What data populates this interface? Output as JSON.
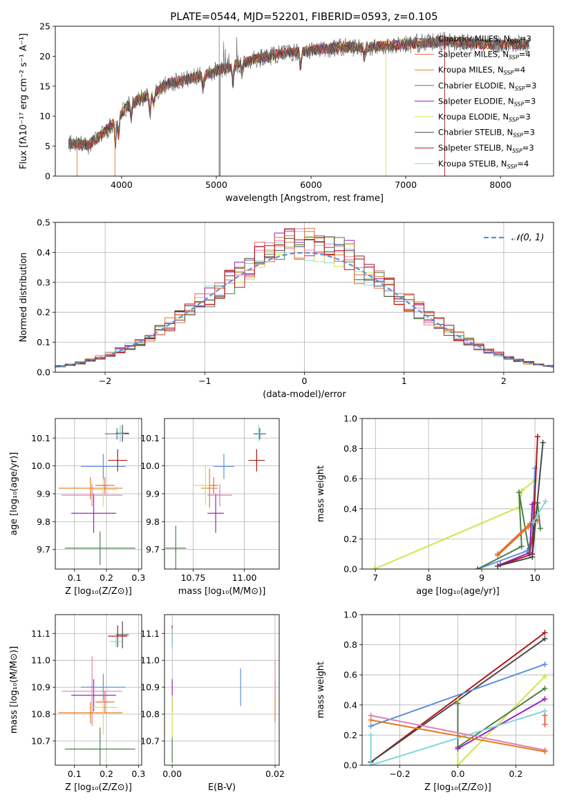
{
  "figure": {
    "title": "PLATE=0544, MJD=52201, FIBERID=0593, z=0.105"
  },
  "colors": {
    "c0": "#6a6a6a",
    "c1": "#e8664a",
    "c2": "#e07b1a",
    "c3": "#4a7d4a",
    "c4": "#9a1fba",
    "c5": "#d4e24a",
    "c6": "#474747",
    "c7": "#b01414",
    "c8": "#7fd4e0",
    "blue": "#5b8fe0",
    "pink": "#e07fb0",
    "grid": "#b0b0b0"
  },
  "chart_data": [
    {
      "type": "line",
      "id": "spectrum",
      "xlabel": "wavelength [Angstrom, rest frame]",
      "ylabel": "Flux [fλ10⁻¹⁷ erg cm⁻² s⁻¹ A⁻¹]",
      "xlim": [
        3300,
        8560
      ],
      "ylim": [
        0,
        25
      ],
      "xticks": [
        4000,
        5000,
        6000,
        7000,
        8000
      ],
      "yticks": [
        0,
        5,
        10,
        15,
        20,
        25
      ],
      "grid": false,
      "legend_position": "upper right",
      "legend": [
        {
          "name": "Chabrier MILES, N",
          "sub": "SSP",
          "tail": "=3",
          "color": "c0"
        },
        {
          "name": "Salpeter MILES, N",
          "sub": "SSP",
          "tail": "=4",
          "color": "c1"
        },
        {
          "name": "Kroupa MILES, N",
          "sub": "SSP",
          "tail": "=4",
          "color": "c2"
        },
        {
          "name": "Chabrier ELODIE, N",
          "sub": "SSP",
          "tail": "=3",
          "color": "c3"
        },
        {
          "name": "Salpeter ELODIE, N",
          "sub": "SSP",
          "tail": "=3",
          "color": "c4"
        },
        {
          "name": "Kroupa ELODIE, N",
          "sub": "SSP",
          "tail": "=3",
          "color": "c5"
        },
        {
          "name": "Chabrier STELIB, N",
          "sub": "SSP",
          "tail": "=3",
          "color": "c6"
        },
        {
          "name": "Salpeter STELIB, N",
          "sub": "SSP",
          "tail": "=3",
          "color": "c7"
        },
        {
          "name": "Kroupa STELIB, N",
          "sub": "SSP",
          "tail": "=4",
          "color": "c8"
        }
      ],
      "continuum": [
        [
          3450,
          5.5
        ],
        [
          3650,
          5.2
        ],
        [
          3800,
          7.0
        ],
        [
          3950,
          9.5
        ],
        [
          4050,
          11.5
        ],
        [
          4200,
          13.0
        ],
        [
          4300,
          13.5
        ],
        [
          4500,
          15.5
        ],
        [
          4800,
          16.5
        ],
        [
          5000,
          17.5
        ],
        [
          5200,
          18.5
        ],
        [
          5400,
          19.5
        ],
        [
          5700,
          20.5
        ],
        [
          6000,
          21.0
        ],
        [
          6300,
          21.5
        ],
        [
          6600,
          21.5
        ],
        [
          7000,
          22.0
        ],
        [
          7400,
          22.5
        ],
        [
          7800,
          22.0
        ],
        [
          8300,
          22.0
        ]
      ]
    },
    {
      "type": "histogram",
      "id": "residuals",
      "xlabel": "(data-model)/error",
      "ylabel": "Normed distribution",
      "xlim": [
        -2.5,
        2.5
      ],
      "ylim": [
        0,
        0.5
      ],
      "xticks": [
        -2,
        -1,
        0,
        1,
        2
      ],
      "yticks": [
        0.0,
        0.1,
        0.2,
        0.3,
        0.4,
        0.5
      ],
      "grid": true,
      "reference": {
        "name": "𝒩(0, 1)",
        "mean": 0,
        "sigma": 1,
        "color": "blue",
        "style": "dashed"
      },
      "legend_position": "upper right",
      "bin_width": 0.1
    },
    {
      "type": "scatter",
      "id": "age_vs_Z",
      "xlabel": "Z [log₁₀(Z/Z⊙)]",
      "ylabel": "age  [log₁₀(age/yr)]",
      "xlim": [
        0.04,
        0.31
      ],
      "ylim": [
        9.63,
        10.17
      ],
      "xticks": [
        0.1,
        0.2,
        0.3
      ],
      "yticks": [
        9.7,
        9.8,
        9.9,
        10.0,
        10.1
      ],
      "grid": true,
      "points": [
        {
          "x": 0.18,
          "y": 9.705,
          "xerr": 0.11,
          "yerr": 0.06,
          "color": "c3"
        },
        {
          "x": 0.16,
          "y": 9.83,
          "xerr": 0.07,
          "yerr": 0.07,
          "color": "c4"
        },
        {
          "x": 0.155,
          "y": 9.895,
          "xerr": 0.095,
          "yerr": 0.04,
          "color": "pink"
        },
        {
          "x": 0.15,
          "y": 9.92,
          "xerr": 0.1,
          "yerr": 0.04,
          "color": "c2"
        },
        {
          "x": 0.19,
          "y": 9.915,
          "xerr": 0.045,
          "yerr": 0.06,
          "color": "c5"
        },
        {
          "x": 0.195,
          "y": 9.93,
          "xerr": 0.03,
          "yerr": 0.03,
          "color": "c1"
        },
        {
          "x": 0.19,
          "y": 9.998,
          "xerr": 0.07,
          "yerr": 0.045,
          "color": "blue"
        },
        {
          "x": 0.235,
          "y": 10.02,
          "xerr": 0.03,
          "yerr": 0.04,
          "color": "c7"
        },
        {
          "x": 0.233,
          "y": 10.115,
          "xerr": 0.038,
          "yerr": 0.02,
          "color": "c0"
        },
        {
          "x": 0.25,
          "y": 10.117,
          "xerr": 0.02,
          "yerr": 0.03,
          "color": "c6"
        },
        {
          "x": 0.243,
          "y": 10.115,
          "xerr": 0.01,
          "yerr": 0.03,
          "color": "c8"
        }
      ]
    },
    {
      "type": "scatter",
      "id": "age_vs_mass",
      "xlabel": "mass [log₁₀(M/M⊙)]",
      "ylabel": "",
      "xlim": [
        10.61,
        11.17
      ],
      "ylim": [
        9.63,
        10.17
      ],
      "xticks": [
        10.75,
        11.0
      ],
      "xtick_labels": [
        "10.75",
        "11.00"
      ],
      "yticks": [
        9.7,
        9.8,
        9.9,
        10.0,
        10.1
      ],
      "grid": true,
      "points": [
        {
          "x": 10.665,
          "y": 9.705,
          "xerr": 0.05,
          "yerr": 0.08,
          "color": "c3"
        },
        {
          "x": 10.86,
          "y": 9.83,
          "xerr": 0.04,
          "yerr": 0.07,
          "color": "c4"
        },
        {
          "x": 10.88,
          "y": 9.895,
          "xerr": 0.06,
          "yerr": 0.04,
          "color": "pink"
        },
        {
          "x": 10.83,
          "y": 9.92,
          "xerr": 0.04,
          "yerr": 0.07,
          "color": "c2"
        },
        {
          "x": 10.81,
          "y": 9.93,
          "xerr": 0.06,
          "yerr": 0.07,
          "color": "c5"
        },
        {
          "x": 10.85,
          "y": 9.93,
          "xerr": 0.02,
          "yerr": 0.03,
          "color": "c1"
        },
        {
          "x": 10.9,
          "y": 9.998,
          "xerr": 0.05,
          "yerr": 0.045,
          "color": "blue"
        },
        {
          "x": 11.06,
          "y": 10.02,
          "xerr": 0.04,
          "yerr": 0.04,
          "color": "c7"
        },
        {
          "x": 11.075,
          "y": 10.115,
          "xerr": 0.03,
          "yerr": 0.02,
          "color": "c6"
        },
        {
          "x": 11.07,
          "y": 10.117,
          "xerr": 0.01,
          "yerr": 0.03,
          "color": "c8"
        }
      ]
    },
    {
      "type": "line",
      "id": "weight_vs_age",
      "xlabel": "age  [log₁₀(age/yr)]",
      "ylabel": "mass weight",
      "xlim": [
        6.75,
        10.35
      ],
      "ylim": [
        0,
        1
      ],
      "xticks": [
        7,
        8,
        9,
        10
      ],
      "yticks": [
        0.0,
        0.2,
        0.4,
        0.6,
        0.8,
        1.0
      ],
      "grid": true,
      "series": [
        {
          "color": "c5",
          "points": [
            [
              6.98,
              0.0
            ],
            [
              9.7,
              0.41
            ],
            [
              9.75,
              0.52
            ],
            [
              10.0,
              0.59
            ]
          ]
        },
        {
          "color": "blue",
          "points": [
            [
              8.92,
              0.0
            ],
            [
              9.85,
              0.12
            ],
            [
              9.95,
              0.21
            ],
            [
              10.0,
              0.67
            ]
          ]
        },
        {
          "color": "c3",
          "points": [
            [
              8.92,
              0.0
            ],
            [
              9.75,
              0.15
            ],
            [
              9.7,
              0.51
            ],
            [
              9.9,
              0.1
            ],
            [
              10.05,
              0.44
            ],
            [
              10.1,
              0.27
            ]
          ]
        },
        {
          "color": "c1",
          "points": [
            [
              9.3,
              0.1
            ],
            [
              9.9,
              0.3
            ],
            [
              10.0,
              0.33
            ],
            [
              10.05,
              0.32
            ]
          ]
        },
        {
          "color": "c2",
          "points": [
            [
              9.3,
              0.09
            ],
            [
              9.88,
              0.28
            ],
            [
              10.0,
              0.32
            ]
          ]
        },
        {
          "color": "c4",
          "points": [
            [
              9.35,
              0.03
            ],
            [
              9.9,
              0.11
            ],
            [
              9.95,
              0.43
            ],
            [
              10.0,
              0.44
            ]
          ]
        },
        {
          "color": "c7",
          "points": [
            [
              9.3,
              0.02
            ],
            [
              9.95,
              0.1
            ],
            [
              10.05,
              0.88
            ]
          ]
        },
        {
          "color": "c6",
          "points": [
            [
              9.3,
              0.02
            ],
            [
              9.95,
              0.08
            ],
            [
              10.15,
              0.84
            ]
          ]
        },
        {
          "color": "c8",
          "points": [
            [
              9.97,
              0.31
            ],
            [
              10.05,
              0.36
            ],
            [
              10.2,
              0.45
            ]
          ]
        }
      ]
    },
    {
      "type": "scatter",
      "id": "mass_vs_Z",
      "xlabel": "Z [log₁₀(Z/Z⊙)]",
      "ylabel": "mass [log₁₀(M/M⊙)]",
      "xlim": [
        0.04,
        0.31
      ],
      "ylim": [
        10.61,
        11.17
      ],
      "xticks": [
        0.1,
        0.2,
        0.3
      ],
      "yticks": [
        10.7,
        10.8,
        10.9,
        11.0,
        11.1
      ],
      "grid": true,
      "points": [
        {
          "x": 0.18,
          "y": 10.67,
          "xerr": 0.11,
          "yerr": 0.08,
          "color": "c3"
        },
        {
          "x": 0.16,
          "y": 10.87,
          "xerr": 0.07,
          "yerr": 0.06,
          "color": "c4"
        },
        {
          "x": 0.155,
          "y": 10.885,
          "xerr": 0.095,
          "yerr": 0.13,
          "color": "pink"
        },
        {
          "x": 0.15,
          "y": 10.805,
          "xerr": 0.1,
          "yerr": 0.04,
          "color": "c2"
        },
        {
          "x": 0.19,
          "y": 10.825,
          "xerr": 0.045,
          "yerr": 0.1,
          "color": "c5"
        },
        {
          "x": 0.195,
          "y": 10.845,
          "xerr": 0.03,
          "yerr": 0.04,
          "color": "c1"
        },
        {
          "x": 0.19,
          "y": 10.9,
          "xerr": 0.07,
          "yerr": 0.05,
          "color": "blue"
        },
        {
          "x": 0.235,
          "y": 11.09,
          "xerr": 0.03,
          "yerr": 0.04,
          "color": "c7"
        },
        {
          "x": 0.25,
          "y": 11.095,
          "xerr": 0.02,
          "yerr": 0.05,
          "color": "c6"
        },
        {
          "x": 0.23,
          "y": 11.07,
          "xerr": 0.02,
          "yerr": 0.02,
          "color": "c8"
        }
      ]
    },
    {
      "type": "scatter",
      "id": "mass_vs_EBV",
      "xlabel": "E(B-V)",
      "ylabel": "",
      "xlim": [
        -0.0015,
        0.0208
      ],
      "ylim": [
        10.61,
        11.17
      ],
      "xticks": [
        0.0,
        0.02
      ],
      "xtick_labels": [
        "0.00",
        "0.02"
      ],
      "yticks": [
        10.7,
        10.8,
        10.9,
        11.0,
        11.1
      ],
      "grid": true,
      "points": [
        {
          "x": 0.0,
          "y": 10.67,
          "yerr": 0.05,
          "color": "c3"
        },
        {
          "x": 0.0,
          "y": 10.87,
          "yerr": 0.06,
          "color": "c4"
        },
        {
          "x": 0.0,
          "y": 10.79,
          "yerr": 0.08,
          "color": "c5"
        },
        {
          "x": 0.0,
          "y": 11.09,
          "yerr": 0.04,
          "color": "c7"
        },
        {
          "x": 0.0,
          "y": 11.08,
          "yerr": 0.04,
          "color": "c8"
        },
        {
          "x": 0.0133,
          "y": 10.9,
          "yerr": 0.07,
          "color": "blue"
        },
        {
          "x": 0.02,
          "y": 10.85,
          "yerr": 0.08,
          "color": "c2"
        },
        {
          "x": 0.02,
          "y": 10.93,
          "yerr": 0.07,
          "color": "pink"
        }
      ]
    },
    {
      "type": "line",
      "id": "weight_vs_Z",
      "xlabel": "Z [log₁₀(Z/Z⊙)]",
      "ylabel": "mass weight",
      "xlim": [
        -0.33,
        0.33
      ],
      "ylim": [
        0,
        1
      ],
      "xticks": [
        -0.2,
        0.0,
        0.2
      ],
      "yticks": [
        0.0,
        0.2,
        0.4,
        0.6,
        0.8,
        1.0
      ],
      "grid": true,
      "series": [
        {
          "color": "c7",
          "points": [
            [
              -0.3,
              0.02
            ],
            [
              0.3,
              0.88
            ]
          ]
        },
        {
          "color": "c6",
          "points": [
            [
              -0.3,
              0.02
            ],
            [
              0.3,
              0.84
            ]
          ]
        },
        {
          "color": "blue",
          "points": [
            [
              -0.3,
              0.26
            ],
            [
              0.3,
              0.67
            ]
          ]
        },
        {
          "color": "c5",
          "points": [
            [
              0.0,
              0.43
            ],
            [
              0.0,
              0.0
            ],
            [
              0.3,
              0.59
            ]
          ]
        },
        {
          "color": "c3",
          "points": [
            [
              0.0,
              0.41
            ],
            [
              0.0,
              0.12
            ],
            [
              0.3,
              0.51
            ]
          ]
        },
        {
          "color": "c4",
          "points": [
            [
              0.0,
              0.11
            ],
            [
              0.3,
              0.44
            ]
          ]
        },
        {
          "color": "c8",
          "points": [
            [
              -0.3,
              0.2
            ],
            [
              -0.3,
              0.0
            ],
            [
              0.3,
              0.36
            ]
          ]
        },
        {
          "color": "pink",
          "points": [
            [
              -0.3,
              0.33
            ],
            [
              0.3,
              0.1
            ]
          ]
        },
        {
          "color": "c2",
          "points": [
            [
              -0.3,
              0.3
            ],
            [
              0.3,
              0.09
            ]
          ]
        },
        {
          "color": "c1",
          "points": [
            [
              0.3,
              0.33
            ],
            [
              0.3,
              0.27
            ]
          ]
        }
      ]
    }
  ]
}
